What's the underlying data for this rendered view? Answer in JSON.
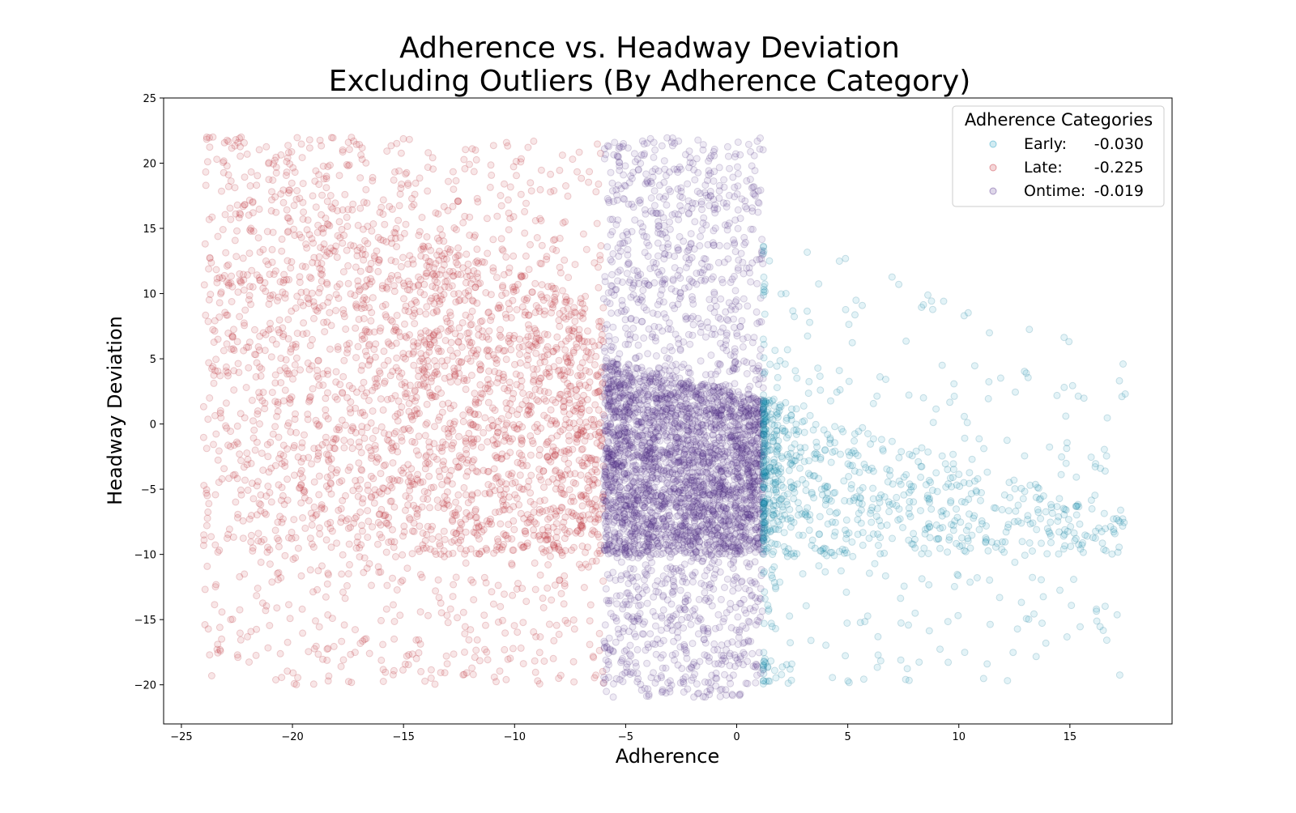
{
  "chart_data": {
    "type": "scatter",
    "title": [
      "Adherence vs. Headway Deviation",
      "Excluding Outliers (By Adherence Category)"
    ],
    "xlabel": "Adherence",
    "ylabel": "Headway Deviation",
    "xlim": [
      -25.8,
      19.6
    ],
    "ylim": [
      -23.0,
      25.0
    ],
    "xticks": [
      -25,
      -20,
      -15,
      -10,
      -5,
      0,
      5,
      10,
      15
    ],
    "xtick_labels": [
      "−25",
      "−20",
      "−15",
      "−10",
      "−5",
      "0",
      "5",
      "10",
      "15"
    ],
    "yticks": [
      -20,
      -15,
      -10,
      -5,
      0,
      5,
      10,
      15,
      20,
      25
    ],
    "ytick_labels": [
      "−20",
      "−15",
      "−10",
      "−5",
      "0",
      "5",
      "10",
      "15",
      "20",
      "25"
    ],
    "grid": false,
    "legend": {
      "title": "Adherence Categories",
      "placement": "top-right",
      "entries": [
        {
          "label": "Early:",
          "value": "-0.030",
          "color": "#1a9bbf"
        },
        {
          "label": "Late:",
          "value": "-0.225",
          "color": "#c8323c"
        },
        {
          "label": "Ontime:",
          "value": "-0.019",
          "color": "#5a3591"
        }
      ]
    },
    "series": [
      {
        "category": "Late",
        "color": "#c8323c",
        "edge_color": "#b01e2a",
        "alpha": 0.12,
        "x_range": [
          -24,
          -6
        ],
        "y_range": [
          -20,
          22
        ],
        "dense_band_upper": [
          [
            -24,
            22
          ],
          [
            -6,
            9
          ]
        ],
        "dense_band_lower": -10
      },
      {
        "category": "Ontime",
        "color": "#5a3591",
        "edge_color": "#3d1f6e",
        "alpha": 0.1,
        "x_range": [
          -6,
          1.2
        ],
        "y_range": [
          -21,
          22
        ],
        "dense_band_upper": [
          [
            -6,
            5
          ],
          [
            1.2,
            2
          ]
        ],
        "dense_band_lower": -10
      },
      {
        "category": "Early",
        "color": "#1a9bbf",
        "edge_color": "#0d6f8c",
        "alpha": 0.12,
        "x_range": [
          1.2,
          17.5
        ],
        "y_range": [
          -20,
          22
        ],
        "dense_band_upper": [
          [
            1.2,
            2
          ],
          [
            17.5,
            -7
          ]
        ],
        "dense_band_lower": -10
      }
    ]
  }
}
